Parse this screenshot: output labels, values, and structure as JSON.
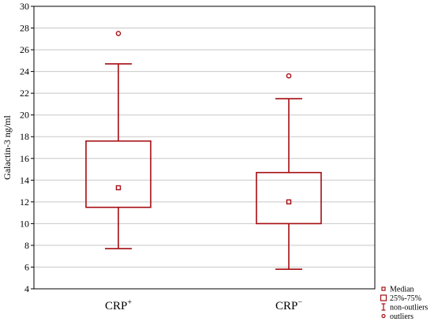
{
  "colors": {
    "series": "#a50d13",
    "grid": "#c8c8c8",
    "axis": "#000000"
  },
  "chart_data": {
    "type": "boxplot",
    "title": "",
    "xlabel": "",
    "ylabel": "Galactin-3 ng/ml",
    "ylim": [
      4,
      30
    ],
    "yticks": [
      4,
      6,
      8,
      10,
      12,
      14,
      16,
      18,
      20,
      22,
      24,
      26,
      28,
      30
    ],
    "grid": true,
    "legend_position": "bottom-right",
    "legend": [
      {
        "marker": "small-square",
        "label": "Median"
      },
      {
        "marker": "box",
        "label": "25%-75%"
      },
      {
        "marker": "whisker",
        "label": "non-outliers"
      },
      {
        "marker": "circle",
        "label": "outliers"
      }
    ],
    "groups": [
      {
        "label_base": "CRP",
        "label_sup": "+",
        "min": 7.7,
        "q1": 11.5,
        "median": 13.3,
        "q3": 17.6,
        "max": 24.7,
        "outliers": [
          27.5
        ]
      },
      {
        "label_base": "CRP",
        "label_sup": "−",
        "min": 5.8,
        "q1": 10.0,
        "median": 12.0,
        "q3": 14.7,
        "max": 21.5,
        "outliers": [
          23.6
        ]
      }
    ]
  }
}
